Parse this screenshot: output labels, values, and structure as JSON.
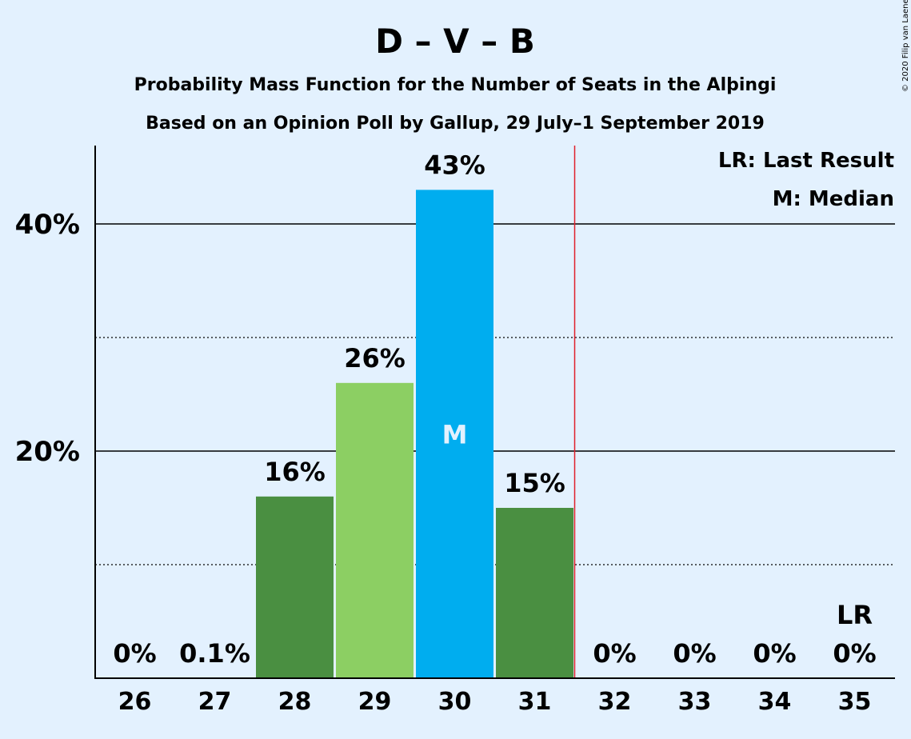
{
  "header": {
    "title": "D – V – B",
    "subtitle1": "Probability Mass Function for the Number of Seats in the Alþingi",
    "subtitle2": "Based on an Opinion Poll by Gallup, 29 July–1 September 2019"
  },
  "legend": {
    "lr": "LR: Last Result",
    "m": "M: Median"
  },
  "copyright": "© 2020 Filip van Laenen",
  "colors": {
    "background": "#e3f1fe",
    "dark_green": "#4a8f41",
    "light_green": "#8ccf63",
    "median_blue": "#00adef",
    "last_result_line": "#e0202a"
  },
  "chart_data": {
    "type": "bar",
    "categories": [
      "26",
      "27",
      "28",
      "29",
      "30",
      "31",
      "32",
      "33",
      "34",
      "35"
    ],
    "values": [
      0,
      0.1,
      16,
      26,
      43,
      15,
      0,
      0,
      0,
      0
    ],
    "value_labels": [
      "0%",
      "0.1%",
      "16%",
      "26%",
      "43%",
      "15%",
      "0%",
      "0%",
      "0%",
      "0%"
    ],
    "bar_colors": [
      "#4a8f41",
      "#4a8f41",
      "#4a8f41",
      "#8ccf63",
      "#00adef",
      "#4a8f41",
      "#4a8f41",
      "#4a8f41",
      "#4a8f41",
      "#4a8f41"
    ],
    "y_ticks": [
      20,
      40
    ],
    "y_tick_labels": [
      "20%",
      "40%"
    ],
    "y_minor_ticks": [
      10,
      30
    ],
    "ylim": [
      0,
      47
    ],
    "median_category": "30",
    "median_label": "M",
    "last_result_category": "35",
    "last_result_label": "LR",
    "majority_line_after": "31",
    "grid": true,
    "legend_position": "top-right"
  }
}
